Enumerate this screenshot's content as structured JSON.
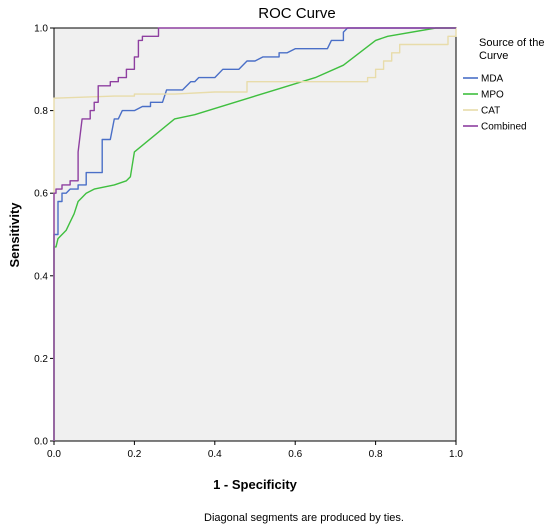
{
  "chart_data": {
    "type": "line",
    "title": "ROC Curve",
    "xlabel": "1 - Specificity",
    "ylabel": "Sensitivity",
    "xlim": [
      0,
      1
    ],
    "ylim": [
      0,
      1
    ],
    "x_ticks": [
      "0.0",
      "0.2",
      "0.4",
      "0.6",
      "0.8",
      "1.0"
    ],
    "y_ticks": [
      "0.0",
      "0.2",
      "0.4",
      "0.6",
      "0.8",
      "1.0"
    ],
    "legend_title": "Source of the Curve",
    "legend_position": "right",
    "footnote": "Diagonal segments are produced by ties.",
    "plot_background": "#f0f0f0",
    "series": [
      {
        "name": "MDA",
        "color": "#4a6fc7",
        "points": [
          [
            0,
            0
          ],
          [
            0,
            0.5
          ],
          [
            0.01,
            0.5
          ],
          [
            0.01,
            0.58
          ],
          [
            0.02,
            0.58
          ],
          [
            0.02,
            0.6
          ],
          [
            0.03,
            0.6
          ],
          [
            0.04,
            0.61
          ],
          [
            0.06,
            0.61
          ],
          [
            0.06,
            0.62
          ],
          [
            0.08,
            0.62
          ],
          [
            0.08,
            0.65
          ],
          [
            0.12,
            0.65
          ],
          [
            0.12,
            0.73
          ],
          [
            0.14,
            0.73
          ],
          [
            0.15,
            0.78
          ],
          [
            0.16,
            0.78
          ],
          [
            0.17,
            0.8
          ],
          [
            0.2,
            0.8
          ],
          [
            0.22,
            0.81
          ],
          [
            0.24,
            0.81
          ],
          [
            0.24,
            0.82
          ],
          [
            0.27,
            0.82
          ],
          [
            0.28,
            0.85
          ],
          [
            0.32,
            0.85
          ],
          [
            0.34,
            0.87
          ],
          [
            0.35,
            0.87
          ],
          [
            0.36,
            0.88
          ],
          [
            0.4,
            0.88
          ],
          [
            0.42,
            0.9
          ],
          [
            0.46,
            0.9
          ],
          [
            0.48,
            0.92
          ],
          [
            0.5,
            0.92
          ],
          [
            0.52,
            0.93
          ],
          [
            0.56,
            0.93
          ],
          [
            0.56,
            0.94
          ],
          [
            0.58,
            0.94
          ],
          [
            0.6,
            0.95
          ],
          [
            0.68,
            0.95
          ],
          [
            0.69,
            0.97
          ],
          [
            0.72,
            0.97
          ],
          [
            0.72,
            0.99
          ],
          [
            0.73,
            1.0
          ],
          [
            1.0,
            1.0
          ]
        ]
      },
      {
        "name": "MPO",
        "color": "#3fbf3f",
        "points": [
          [
            0,
            0
          ],
          [
            0,
            0.47
          ],
          [
            0.005,
            0.47
          ],
          [
            0.01,
            0.49
          ],
          [
            0.03,
            0.51
          ],
          [
            0.04,
            0.53
          ],
          [
            0.05,
            0.55
          ],
          [
            0.06,
            0.58
          ],
          [
            0.08,
            0.6
          ],
          [
            0.1,
            0.61
          ],
          [
            0.15,
            0.62
          ],
          [
            0.18,
            0.63
          ],
          [
            0.19,
            0.64
          ],
          [
            0.2,
            0.7
          ],
          [
            0.25,
            0.74
          ],
          [
            0.3,
            0.78
          ],
          [
            0.35,
            0.79
          ],
          [
            0.45,
            0.82
          ],
          [
            0.55,
            0.85
          ],
          [
            0.65,
            0.88
          ],
          [
            0.72,
            0.91
          ],
          [
            0.76,
            0.94
          ],
          [
            0.8,
            0.97
          ],
          [
            0.83,
            0.98
          ],
          [
            0.95,
            1.0
          ],
          [
            1.0,
            1.0
          ]
        ]
      },
      {
        "name": "CAT",
        "color": "#e8dcaa",
        "points": [
          [
            0,
            0
          ],
          [
            0,
            0.83
          ],
          [
            0.15,
            0.835
          ],
          [
            0.2,
            0.835
          ],
          [
            0.2,
            0.84
          ],
          [
            0.3,
            0.84
          ],
          [
            0.4,
            0.845
          ],
          [
            0.48,
            0.845
          ],
          [
            0.48,
            0.87
          ],
          [
            0.78,
            0.87
          ],
          [
            0.78,
            0.88
          ],
          [
            0.8,
            0.88
          ],
          [
            0.8,
            0.9
          ],
          [
            0.82,
            0.9
          ],
          [
            0.82,
            0.92
          ],
          [
            0.84,
            0.92
          ],
          [
            0.84,
            0.94
          ],
          [
            0.86,
            0.94
          ],
          [
            0.86,
            0.96
          ],
          [
            0.98,
            0.96
          ],
          [
            0.98,
            0.98
          ],
          [
            1.0,
            0.98
          ],
          [
            1.0,
            1.0
          ]
        ]
      },
      {
        "name": "Combined",
        "color": "#8e3fa0",
        "points": [
          [
            0,
            0
          ],
          [
            0,
            0.6
          ],
          [
            0.005,
            0.6
          ],
          [
            0.005,
            0.61
          ],
          [
            0.02,
            0.61
          ],
          [
            0.02,
            0.62
          ],
          [
            0.04,
            0.62
          ],
          [
            0.04,
            0.63
          ],
          [
            0.06,
            0.63
          ],
          [
            0.06,
            0.65
          ],
          [
            0.06,
            0.7
          ],
          [
            0.07,
            0.78
          ],
          [
            0.09,
            0.78
          ],
          [
            0.09,
            0.8
          ],
          [
            0.1,
            0.8
          ],
          [
            0.1,
            0.82
          ],
          [
            0.11,
            0.82
          ],
          [
            0.11,
            0.86
          ],
          [
            0.14,
            0.86
          ],
          [
            0.14,
            0.87
          ],
          [
            0.16,
            0.87
          ],
          [
            0.16,
            0.88
          ],
          [
            0.18,
            0.88
          ],
          [
            0.18,
            0.9
          ],
          [
            0.2,
            0.9
          ],
          [
            0.2,
            0.93
          ],
          [
            0.21,
            0.93
          ],
          [
            0.21,
            0.97
          ],
          [
            0.22,
            0.97
          ],
          [
            0.22,
            0.98
          ],
          [
            0.26,
            0.98
          ],
          [
            0.26,
            1.0
          ],
          [
            1.0,
            1.0
          ]
        ]
      }
    ]
  }
}
